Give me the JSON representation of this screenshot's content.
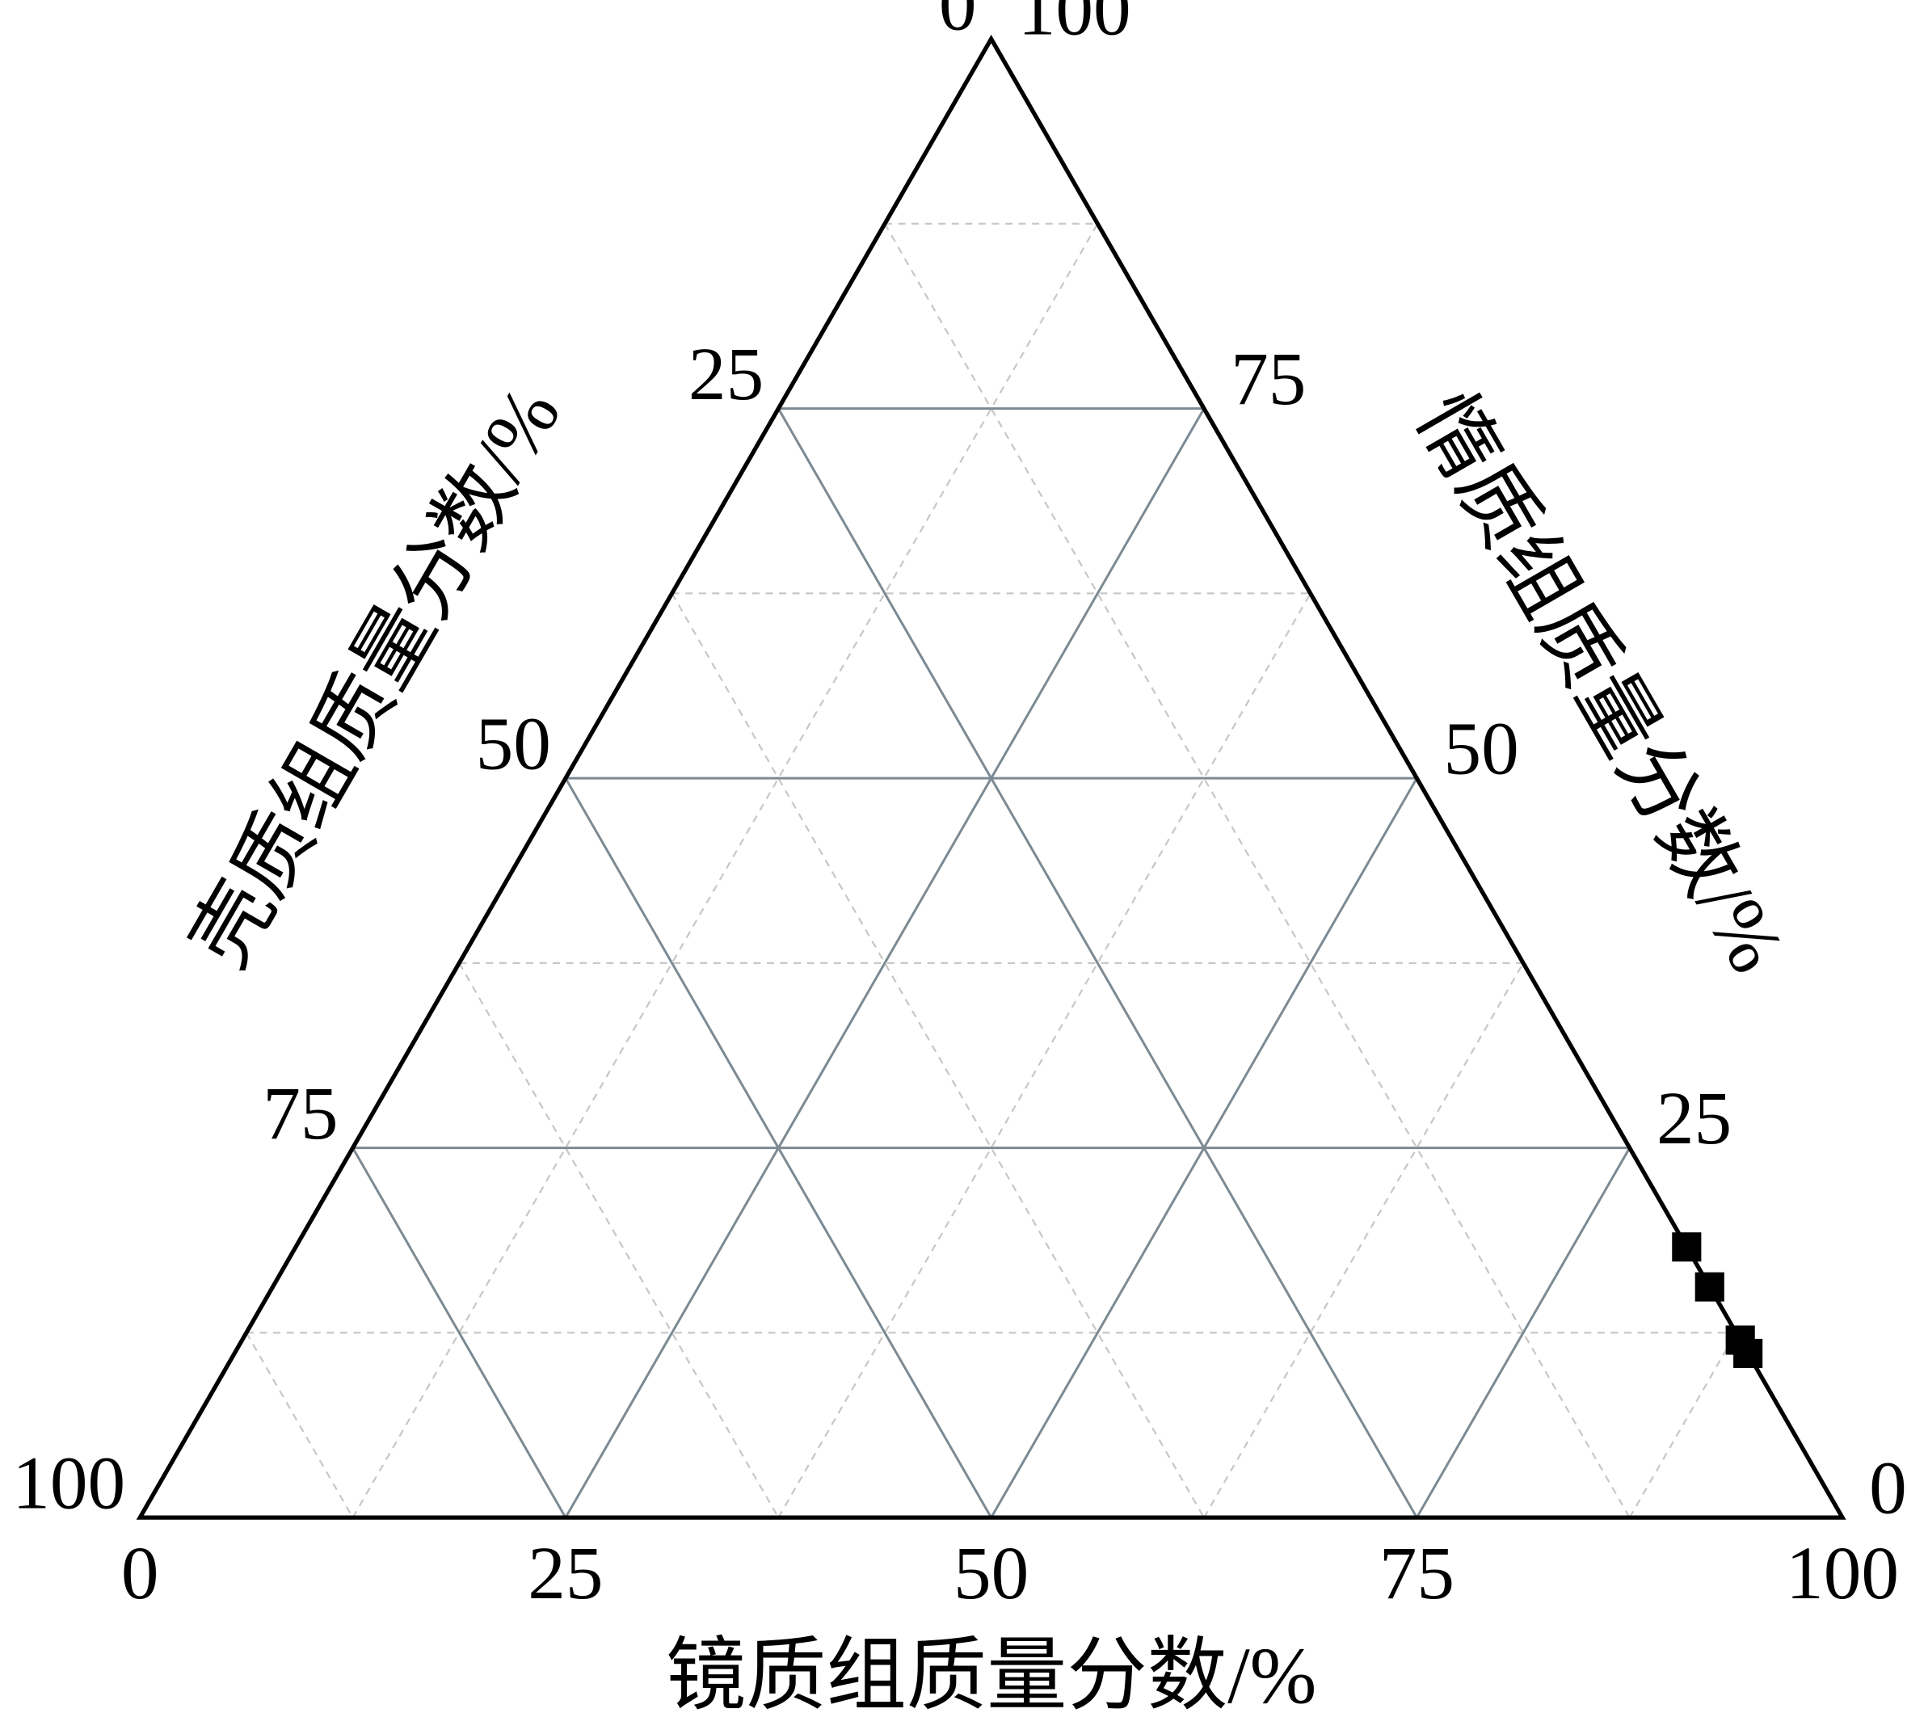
{
  "chart_data": {
    "type": "ternary",
    "bottom_axis": {
      "label": "镜质组质量分数/%",
      "ticks": [
        0,
        25,
        50,
        75,
        100
      ]
    },
    "left_axis": {
      "label": "壳质组质量分数/%",
      "ticks": [
        0,
        25,
        50,
        75,
        100
      ]
    },
    "right_axis": {
      "label": "惰质组质量分数/%",
      "ticks": [
        100,
        75,
        50,
        25,
        0
      ]
    },
    "grid": true,
    "minor_grid": [
      12.5,
      37.5,
      62.5,
      87.5
    ],
    "marker_color": "#000000",
    "points": {
      "vitrinite": [
        81.7,
        84.4,
        88.0,
        88.9
      ],
      "inertinite": [
        18.3,
        15.6,
        12.0,
        11.1
      ],
      "exinite": [
        0,
        0,
        0,
        0
      ]
    }
  }
}
